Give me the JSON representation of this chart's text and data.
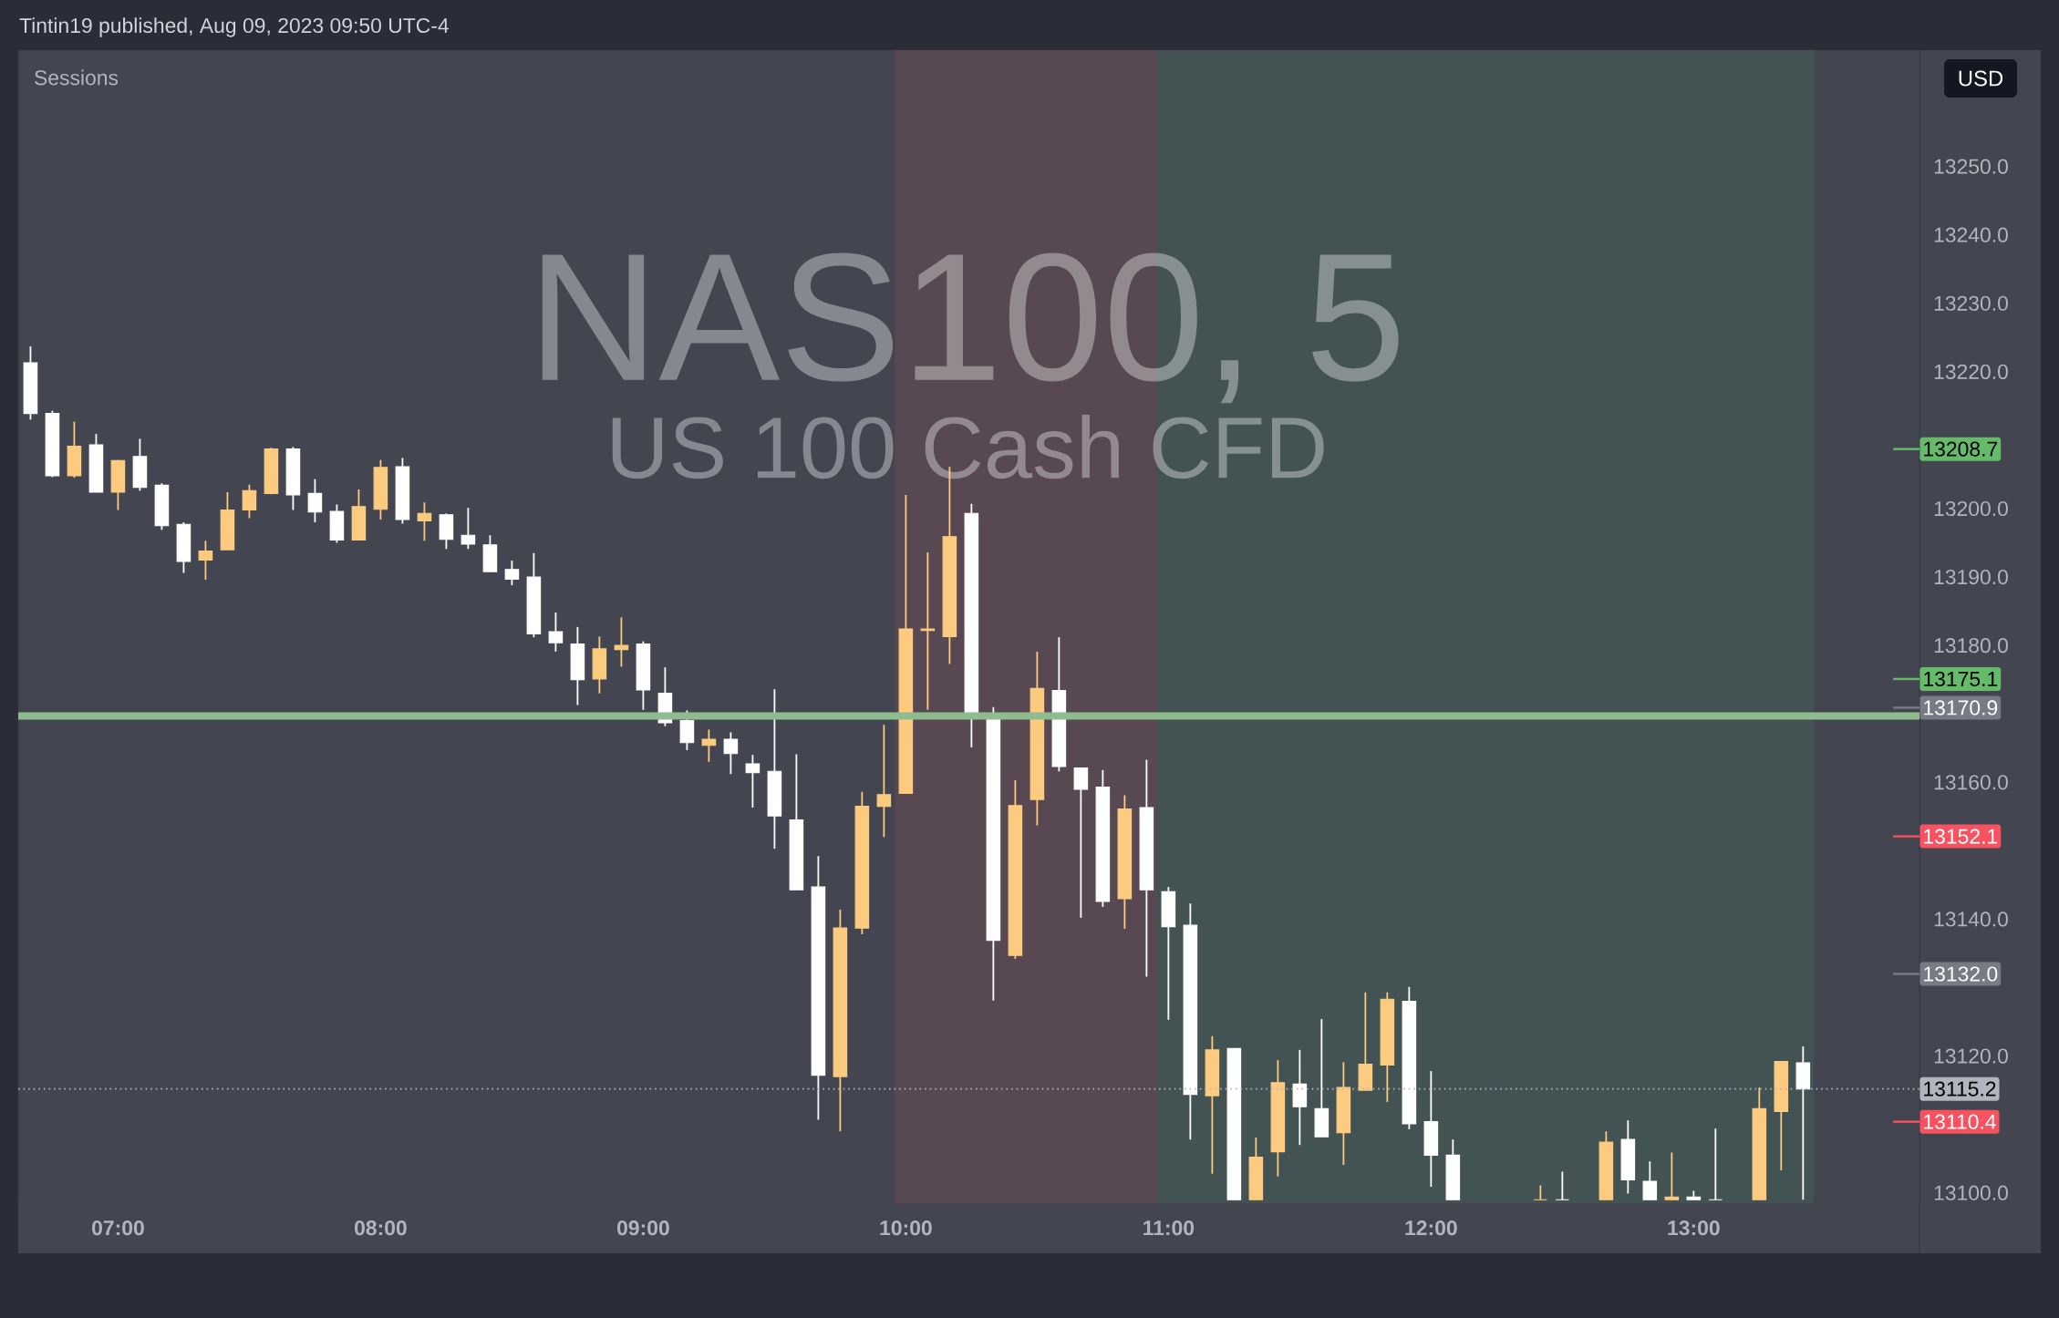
{
  "chart_data": {
    "type": "candlestick",
    "title": "NAS100, 5",
    "subtitle": "US 100 Cash CFD",
    "annotations": [
      "Tintin19 published, Aug 09, 2023 09:50 UTC-4",
      "Sessions",
      "USD"
    ],
    "x": [
      6.6667,
      6.75,
      6.8333,
      6.9167,
      7,
      7.0833,
      7.1667,
      7.25,
      7.3333,
      7.4167,
      7.5,
      7.5833,
      7.6667,
      7.75,
      7.8333,
      7.9167,
      8,
      8.0833,
      8.1667,
      8.25,
      8.3333,
      8.4167,
      8.5,
      8.5833,
      8.6667,
      8.75,
      8.8333,
      8.9167,
      9,
      9.0833,
      9.1667,
      9.25,
      9.3333,
      9.4167,
      9.5,
      9.5833,
      9.6667,
      9.75,
      9.8333,
      9.9167,
      10,
      10.0833,
      10.1667,
      10.25,
      10.3333,
      10.4167,
      10.5,
      10.5833,
      10.6667,
      10.75,
      10.8333,
      10.9167,
      11,
      11.0833,
      11.1667,
      11.25,
      11.3333,
      11.4167,
      11.5,
      11.5833,
      11.6667,
      11.75,
      11.8333,
      11.9167,
      12,
      12.0833,
      12.4167,
      12.5,
      12.6667,
      12.75,
      12.8333,
      12.9167,
      13,
      13.0833,
      13.25,
      13.3333,
      13.4167
    ],
    "ohlc": [
      [
        13221.3,
        13223.7,
        13213.0,
        13213.9
      ],
      [
        13213.9,
        13214.3,
        13204.6,
        13204.8
      ],
      [
        13204.8,
        13212.7,
        13204.5,
        13209.1
      ],
      [
        13209.3,
        13210.9,
        13202.4,
        13202.4
      ],
      [
        13202.4,
        13207.1,
        13199.8,
        13207.0
      ],
      [
        13207.6,
        13210.2,
        13202.6,
        13203.1
      ],
      [
        13203.4,
        13203.7,
        13196.9,
        13197.5
      ],
      [
        13197.7,
        13198.0,
        13190.6,
        13192.3
      ],
      [
        13192.5,
        13195.3,
        13189.6,
        13193.8
      ],
      [
        13194.0,
        13202.4,
        13194.0,
        13199.8
      ],
      [
        13199.8,
        13203.5,
        13198.6,
        13202.6
      ],
      [
        13202.2,
        13208.9,
        13202.1,
        13208.7
      ],
      [
        13208.7,
        13209.0,
        13199.8,
        13202.0
      ],
      [
        13202.2,
        13204.3,
        13198.0,
        13199.5
      ],
      [
        13199.6,
        13200.6,
        13195.0,
        13195.4
      ],
      [
        13195.4,
        13202.8,
        13195.4,
        13200.3
      ],
      [
        13199.9,
        13207.1,
        13198.4,
        13206.0
      ],
      [
        13206.1,
        13207.4,
        13197.8,
        13198.4
      ],
      [
        13198.2,
        13200.9,
        13195.3,
        13199.3
      ],
      [
        13199.1,
        13199.3,
        13194.1,
        13195.5
      ],
      [
        13196.1,
        13200.1,
        13194.1,
        13194.8
      ],
      [
        13194.7,
        13196.1,
        13190.8,
        13190.8
      ],
      [
        13191.1,
        13192.4,
        13188.8,
        13189.7
      ],
      [
        13190.0,
        13193.5,
        13181.2,
        13181.7
      ],
      [
        13182.0,
        13184.8,
        13179.1,
        13180.4
      ],
      [
        13180.2,
        13182.7,
        13171.3,
        13175.0
      ],
      [
        13175.1,
        13181.3,
        13173.0,
        13179.5
      ],
      [
        13179.4,
        13184.1,
        13176.9,
        13180.0
      ],
      [
        13180.2,
        13180.6,
        13170.6,
        13173.5
      ],
      [
        13173.0,
        13176.8,
        13168.2,
        13168.7
      ],
      [
        13169.0,
        13170.5,
        13164.7,
        13165.8
      ],
      [
        13165.4,
        13167.7,
        13163.0,
        13166.3
      ],
      [
        13166.3,
        13167.3,
        13161.2,
        13164.2
      ],
      [
        13162.7,
        13164.0,
        13156.3,
        13161.4
      ],
      [
        13161.6,
        13173.6,
        13150.3,
        13155.1
      ],
      [
        13154.5,
        13164.1,
        13144.3,
        13144.3
      ],
      [
        13144.7,
        13149.2,
        13110.7,
        13117.2
      ],
      [
        13117.0,
        13141.4,
        13109.0,
        13138.7
      ],
      [
        13138.7,
        13158.6,
        13137.8,
        13156.5
      ],
      [
        13156.5,
        13168.4,
        13152.0,
        13158.2
      ],
      [
        13158.4,
        13202.0,
        13158.4,
        13182.4
      ],
      [
        13182.2,
        13193.6,
        13170.6,
        13182.4
      ],
      [
        13181.3,
        13206.1,
        13177.3,
        13195.9
      ],
      [
        13199.3,
        13200.7,
        13165.1,
        13169.6
      ],
      [
        13169.4,
        13171.0,
        13128.1,
        13136.9
      ],
      [
        13134.7,
        13160.3,
        13134.2,
        13156.6
      ],
      [
        13157.5,
        13179.1,
        13153.7,
        13173.7
      ],
      [
        13173.4,
        13181.2,
        13161.6,
        13162.3
      ],
      [
        13162.1,
        13162.1,
        13140.2,
        13159.0
      ],
      [
        13159.3,
        13161.8,
        13141.8,
        13142.6
      ],
      [
        13143.0,
        13158.1,
        13138.6,
        13156.1
      ],
      [
        13156.3,
        13163.3,
        13131.6,
        13144.3
      ],
      [
        13144.0,
        13144.7,
        13125.3,
        13138.9
      ],
      [
        13139.1,
        13142.3,
        13107.8,
        13114.4
      ],
      [
        13114.2,
        13122.9,
        13102.8,
        13120.9
      ],
      [
        13121.1,
        13121.1,
        13099,
        13099
      ],
      [
        13099,
        13108.1,
        13099,
        13105.2
      ],
      [
        13106.0,
        13119.4,
        13102.4,
        13116.1
      ],
      [
        13115.9,
        13120.9,
        13107.0,
        13112.6
      ],
      [
        13112.3,
        13125.4,
        13108.2,
        13108.2
      ],
      [
        13108.8,
        13119.1,
        13104.1,
        13115.4
      ],
      [
        13115.0,
        13129.3,
        13115.0,
        13118.8
      ],
      [
        13118.7,
        13129.3,
        13113.3,
        13128.3
      ],
      [
        13128.0,
        13130.1,
        13109.3,
        13110.1
      ],
      [
        13110.4,
        13117.8,
        13100.9,
        13105.5
      ],
      [
        13105.5,
        13107.8,
        13099,
        13099
      ],
      [
        13099,
        13101.1,
        13099,
        13099
      ],
      [
        13099,
        13103.1,
        13099,
        13099
      ],
      [
        13099,
        13109.0,
        13099,
        13107.4
      ],
      [
        13107.8,
        13110.6,
        13099.9,
        13101.9
      ],
      [
        13101.7,
        13104.6,
        13099,
        13099
      ],
      [
        13099,
        13105.9,
        13099,
        13099.4
      ],
      [
        13099.4,
        13100.3,
        13099,
        13099
      ],
      [
        13099,
        13109.4,
        13099,
        13099
      ],
      [
        13099,
        13115.4,
        13099,
        13112.3
      ],
      [
        13111.9,
        13119.2,
        13103.3,
        13119.2
      ],
      [
        13119.0,
        13121.4,
        13099,
        13115.2
      ]
    ],
    "colors": [
      "#ffffff",
      "#ffffff",
      "#fdcb7f",
      "#ffffff",
      "#fdcb7f",
      "#ffffff",
      "#ffffff",
      "#ffffff",
      "#fdcb7f",
      "#fdcb7f",
      "#fdcb7f",
      "#fdcb7f",
      "#ffffff",
      "#ffffff",
      "#ffffff",
      "#fdcb7f",
      "#fdcb7f",
      "#ffffff",
      "#fdcb7f",
      "#ffffff",
      "#ffffff",
      "#ffffff",
      "#ffffff",
      "#ffffff",
      "#ffffff",
      "#ffffff",
      "#fdcb7f",
      "#fdcb7f",
      "#ffffff",
      "#ffffff",
      "#ffffff",
      "#fdcb7f",
      "#ffffff",
      "#ffffff",
      "#ffffff",
      "#ffffff",
      "#ffffff",
      "#fdcb7f",
      "#fdcb7f",
      "#fdcb7f",
      "#fdcb7f",
      "#fdcb7f",
      "#fdcb7f",
      "#ffffff",
      "#ffffff",
      "#fdcb7f",
      "#fdcb7f",
      "#ffffff",
      "#ffffff",
      "#ffffff",
      "#fdcb7f",
      "#ffffff",
      "#ffffff",
      "#ffffff",
      "#fdcb7f",
      "#ffffff",
      "#fdcb7f",
      "#fdcb7f",
      "#ffffff",
      "#ffffff",
      "#fdcb7f",
      "#fdcb7f",
      "#fdcb7f",
      "#ffffff",
      "#ffffff",
      "#ffffff",
      "#fdcb7f",
      "#ffffff",
      "#fdcb7f",
      "#ffffff",
      "#ffffff",
      "#fdcb7f",
      "#ffffff",
      "#ffffff",
      "#fdcb7f",
      "#fdcb7f",
      "#ffffff"
    ],
    "xlim": [
      6.62,
      13.86
    ],
    "xticks": [
      {
        "value": 7,
        "label": "07:00"
      },
      {
        "value": 8,
        "label": "08:00"
      },
      {
        "value": 9,
        "label": "09:00"
      },
      {
        "value": 10,
        "label": "10:00"
      },
      {
        "value": 11,
        "label": "11:00"
      },
      {
        "value": 12,
        "label": "12:00"
      },
      {
        "value": 13,
        "label": "13:00"
      }
    ],
    "ylim": [
      13098.5,
      13267
    ],
    "yticks": [
      {
        "value": 13100,
        "label": "13100.0"
      },
      {
        "value": 13120,
        "label": "13120.0"
      },
      {
        "value": 13140,
        "label": "13140.0"
      },
      {
        "value": 13160,
        "label": "13160.0"
      },
      {
        "value": 13180,
        "label": "13180.0"
      },
      {
        "value": 13190,
        "label": "13190.0"
      },
      {
        "value": 13200,
        "label": "13200.0"
      },
      {
        "value": 13220,
        "label": "13220.0"
      },
      {
        "value": 13230,
        "label": "13230.0"
      },
      {
        "value": 13240,
        "label": "13240.0"
      },
      {
        "value": 13250,
        "label": "13250.0"
      }
    ],
    "bands": [
      {
        "axis": "x",
        "from": 9.958,
        "to": 10.958,
        "color": "#574852"
      },
      {
        "axis": "x",
        "from": 10.958,
        "to": 13.458,
        "color": "#435252"
      }
    ],
    "ref_lines": [
      {
        "axis": "y",
        "value": 13169.7,
        "color": "#8fbc8f",
        "line_style": "solid"
      },
      {
        "axis": "y",
        "value": 13115.2,
        "color": "#b2b5be",
        "line_style": "dotted",
        "label": "13115.2"
      },
      {
        "axis": "y",
        "value": 13208.7,
        "color": "#66bb6a",
        "label": "13208.7"
      },
      {
        "axis": "y",
        "value": 13175.1,
        "color": "#66bb6a",
        "label": "13175.1"
      },
      {
        "axis": "y",
        "value": 13170.9,
        "color": "#787b86",
        "label": "13170.9"
      },
      {
        "axis": "y",
        "value": 13152.1,
        "color": "#f7525f",
        "label": "13152.1"
      },
      {
        "axis": "y",
        "value": 13132.0,
        "color": "#787b86",
        "label": "13132.0"
      },
      {
        "axis": "y",
        "value": 13110.4,
        "color": "#f7525f",
        "label": "13110.4"
      }
    ]
  }
}
